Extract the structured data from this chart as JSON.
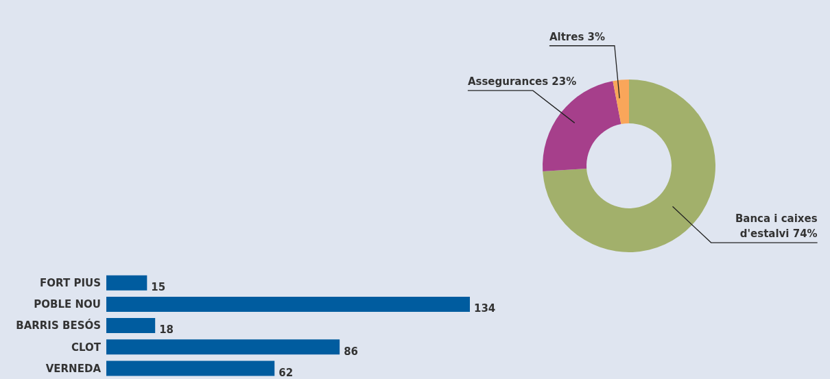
{
  "chart_data": [
    {
      "type": "donut",
      "categories": [
        "Banca i caixes d'estalvi",
        "Assegurances",
        "Altres"
      ],
      "values": [
        74,
        23,
        3
      ],
      "value_labels": [
        "74%",
        "23%",
        "3%"
      ],
      "colors": [
        "#a2b06b",
        "#a63f8b",
        "#f9a65a"
      ]
    },
    {
      "type": "bar",
      "orientation": "horizontal",
      "categories": [
        "FORT PIUS",
        "POBLE NOU",
        "BARRIS BESÓS",
        "CLOT",
        "VERNEDA"
      ],
      "values": [
        15,
        134,
        18,
        86,
        62
      ],
      "color": "#005c9f",
      "data_labels": true
    }
  ]
}
